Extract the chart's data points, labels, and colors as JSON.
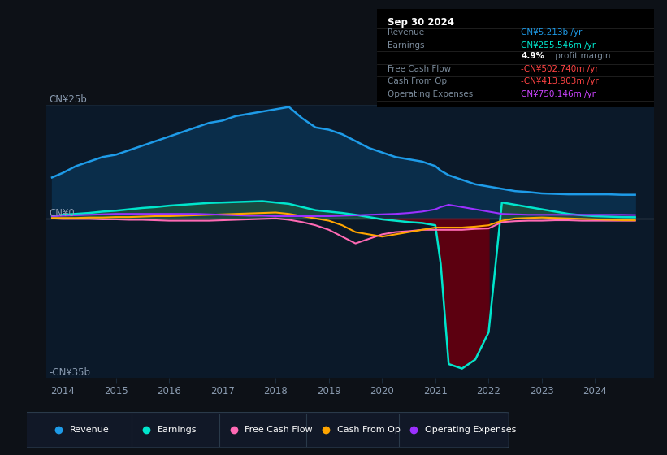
{
  "bg_color": "#0d1117",
  "plot_bg_color": "#0b1929",
  "title": "Sep 30 2024",
  "years": [
    2013.8,
    2014.0,
    2014.25,
    2014.5,
    2014.75,
    2015.0,
    2015.25,
    2015.5,
    2015.75,
    2016.0,
    2016.25,
    2016.5,
    2016.75,
    2017.0,
    2017.25,
    2017.5,
    2017.75,
    2018.0,
    2018.25,
    2018.5,
    2018.75,
    2019.0,
    2019.25,
    2019.5,
    2019.75,
    2020.0,
    2020.25,
    2020.5,
    2020.75,
    2021.0,
    2021.1,
    2021.25,
    2021.5,
    2021.75,
    2022.0,
    2022.25,
    2022.5,
    2022.75,
    2023.0,
    2023.25,
    2023.5,
    2023.75,
    2024.0,
    2024.25,
    2024.5,
    2024.75
  ],
  "revenue": [
    9.0,
    10.0,
    11.5,
    12.5,
    13.5,
    14.0,
    15.0,
    16.0,
    17.0,
    18.0,
    19.0,
    20.0,
    21.0,
    21.5,
    22.5,
    23.0,
    23.5,
    24.0,
    24.5,
    22.0,
    20.0,
    19.5,
    18.5,
    17.0,
    15.5,
    14.5,
    13.5,
    13.0,
    12.5,
    11.5,
    10.5,
    9.5,
    8.5,
    7.5,
    7.0,
    6.5,
    6.0,
    5.8,
    5.5,
    5.4,
    5.3,
    5.3,
    5.3,
    5.3,
    5.2,
    5.2
  ],
  "earnings": [
    0.5,
    0.8,
    1.0,
    1.2,
    1.5,
    1.7,
    2.0,
    2.3,
    2.5,
    2.8,
    3.0,
    3.2,
    3.4,
    3.5,
    3.6,
    3.7,
    3.8,
    3.5,
    3.2,
    2.5,
    1.8,
    1.5,
    1.2,
    0.8,
    0.3,
    -0.2,
    -0.5,
    -0.8,
    -1.0,
    -1.5,
    -10.0,
    -32.0,
    -33.0,
    -31.0,
    -25.0,
    3.5,
    3.0,
    2.5,
    2.0,
    1.5,
    1.0,
    0.7,
    0.5,
    0.4,
    0.3,
    0.26
  ],
  "free_cash_flow": [
    0.0,
    -0.1,
    -0.1,
    -0.1,
    -0.2,
    -0.2,
    -0.3,
    -0.3,
    -0.4,
    -0.5,
    -0.5,
    -0.5,
    -0.5,
    -0.4,
    -0.3,
    -0.2,
    -0.1,
    0.0,
    -0.3,
    -0.8,
    -1.5,
    -2.5,
    -4.0,
    -5.5,
    -4.5,
    -3.5,
    -3.0,
    -2.8,
    -2.5,
    -2.5,
    -2.5,
    -2.5,
    -2.5,
    -2.3,
    -2.2,
    -0.8,
    -0.6,
    -0.5,
    -0.5,
    -0.4,
    -0.4,
    -0.5,
    -0.5,
    -0.5,
    -0.5,
    -0.5
  ],
  "cash_from_op": [
    0.1,
    0.1,
    0.1,
    0.2,
    0.2,
    0.3,
    0.3,
    0.4,
    0.5,
    0.5,
    0.6,
    0.7,
    0.8,
    0.9,
    1.0,
    1.1,
    1.2,
    1.3,
    1.0,
    0.5,
    0.0,
    -0.5,
    -1.5,
    -3.0,
    -3.5,
    -4.0,
    -3.5,
    -3.0,
    -2.5,
    -2.0,
    -2.0,
    -2.0,
    -2.0,
    -1.8,
    -1.5,
    -0.5,
    0.0,
    0.1,
    0.2,
    0.1,
    0.0,
    -0.1,
    -0.2,
    -0.3,
    -0.4,
    -0.41
  ],
  "operating_expenses": [
    0.5,
    0.6,
    0.7,
    0.8,
    0.9,
    1.0,
    1.0,
    1.0,
    1.0,
    1.0,
    1.0,
    1.0,
    0.9,
    0.8,
    0.7,
    0.6,
    0.6,
    0.5,
    0.5,
    0.5,
    0.5,
    0.5,
    0.6,
    0.7,
    0.8,
    0.9,
    1.0,
    1.2,
    1.5,
    2.0,
    2.5,
    3.0,
    2.5,
    2.0,
    1.5,
    1.0,
    0.9,
    0.8,
    0.8,
    0.8,
    0.8,
    0.8,
    0.8,
    0.8,
    0.8,
    0.75
  ],
  "revenue_color": "#1e9be8",
  "revenue_fill_color": "#0a2d4a",
  "earnings_color": "#00e5cc",
  "earnings_fill_pos_color": "#1a4a40",
  "earnings_fill_neg_color": "#5c0010",
  "free_cash_flow_color": "#ff69b4",
  "cash_from_op_color": "#ffa500",
  "operating_expenses_color": "#9b30ff",
  "zero_line_color": "#ffffff",
  "grid_color": "#1a2a3a",
  "text_color": "#8a9bb0",
  "ylim": [
    -35,
    25
  ],
  "xlim": [
    2013.7,
    2025.1
  ],
  "xtick_values": [
    2014,
    2015,
    2016,
    2017,
    2018,
    2019,
    2020,
    2021,
    2022,
    2023,
    2024
  ],
  "xtick_labels": [
    "2014",
    "2015",
    "2016",
    "2017",
    "2018",
    "2019",
    "2020",
    "2021",
    "2022",
    "2023",
    "2024"
  ],
  "legend_items": [
    {
      "label": "Revenue",
      "color": "#1e9be8",
      "marker": "o"
    },
    {
      "label": "Earnings",
      "color": "#00e5cc",
      "marker": "o"
    },
    {
      "label": "Free Cash Flow",
      "color": "#ff69b4",
      "marker": "o"
    },
    {
      "label": "Cash From Op",
      "color": "#ffa500",
      "marker": "o"
    },
    {
      "label": "Operating Expenses",
      "color": "#9b30ff",
      "marker": "o"
    }
  ],
  "info_rows": [
    {
      "label": "Revenue",
      "value": "CN¥5.213b /yr",
      "value_color": "#1e9be8"
    },
    {
      "label": "Earnings",
      "value": "CN¥255.546m /yr",
      "value_color": "#00e5cc"
    },
    {
      "label": "",
      "value": "4.9% profit margin",
      "value_color": "mixed"
    },
    {
      "label": "Free Cash Flow",
      "value": "-CN¥502.740m /yr",
      "value_color": "#ff4444"
    },
    {
      "label": "Cash From Op",
      "value": "-CN¥413.903m /yr",
      "value_color": "#ff4444"
    },
    {
      "label": "Operating Expenses",
      "value": "CN¥750.146m /yr",
      "value_color": "#cc44ff"
    }
  ]
}
